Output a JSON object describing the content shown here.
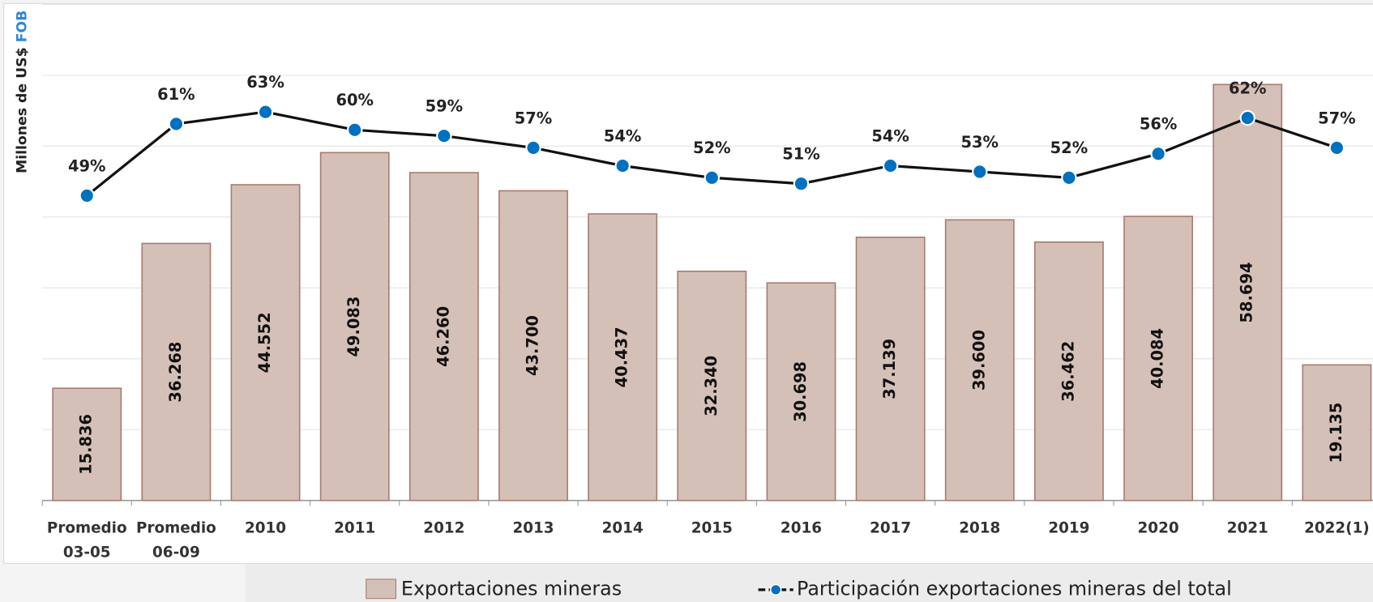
{
  "chart_data": {
    "type": "bar+line",
    "ylabel": "Millones de US$",
    "ylabel_highlight": "FOB",
    "categories": [
      "Promedio 03-05",
      "Promedio 06-09",
      "2010",
      "2011",
      "2012",
      "2013",
      "2014",
      "2015",
      "2016",
      "2017",
      "2018",
      "2019",
      "2020",
      "2021",
      "2022(1)"
    ],
    "series": [
      {
        "name": "Exportaciones mineras",
        "type": "bar",
        "color": "#d5c0b8",
        "values": [
          15836,
          36268,
          44552,
          49083,
          46260,
          43700,
          40437,
          32340,
          30698,
          37139,
          39600,
          36462,
          40084,
          58694,
          19135
        ],
        "value_labels": [
          "15.836",
          "36.268",
          "44.552",
          "49.083",
          "46.260",
          "43.700",
          "40.437",
          "32.340",
          "30.698",
          "37.139",
          "39.600",
          "36.462",
          "40.084",
          "58.694",
          "19.135"
        ]
      },
      {
        "name": "Participación exportaciones mineras del total",
        "type": "line",
        "axis": "y2",
        "color": "#0070c0",
        "values": [
          49,
          61,
          63,
          60,
          59,
          57,
          54,
          52,
          51,
          54,
          53,
          52,
          56,
          62,
          57
        ],
        "value_labels": [
          "49%",
          "61%",
          "63%",
          "60%",
          "59%",
          "57%",
          "54%",
          "52%",
          "51%",
          "54%",
          "53%",
          "52%",
          "56%",
          "62%",
          "57%"
        ]
      }
    ],
    "ylim": [
      0,
      70000
    ],
    "yticks": [
      0,
      10000,
      20000,
      30000,
      40000,
      50000,
      60000,
      70000
    ],
    "y2lim": [
      -2,
      81
    ],
    "grid": true
  }
}
